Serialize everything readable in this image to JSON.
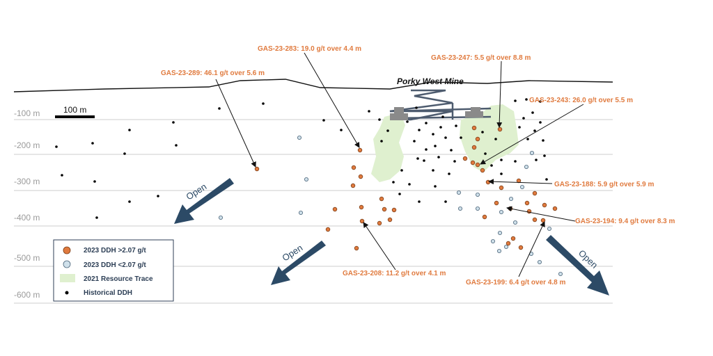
{
  "depth_labels": [
    "-100 m",
    "-200 m",
    "-300 m",
    "-400 m",
    "-500 m",
    "-600 m"
  ],
  "scale_bar": "100 m",
  "mine_title": "Porky West Mine",
  "open_labels": [
    "Open",
    "Open",
    "Open"
  ],
  "callouts": [
    {
      "text": "GAS-23-289: 46.1 g/t over 5.6 m"
    },
    {
      "text": "GAS-23-283: 19.0 g/t over 4.4 m"
    },
    {
      "text": "GAS-23-247: 5.5 g/t over 8.8 m"
    },
    {
      "text": "GAS-23-243: 26.0 g/t over 5.5 m"
    },
    {
      "text": "GAS-23-188: 5.9 g/t over 5.9 m"
    },
    {
      "text": "GAS-23-194: 9.4 g/t over 8.3 m"
    },
    {
      "text": "GAS-23-208: 11.2 g/t over 4.1 m"
    },
    {
      "text": "GAS-23-199: 6.4 g/t over 4.8 m"
    }
  ],
  "legend": [
    {
      "label": "2023 DDH >2.07 g/t",
      "color": "#e07a3e"
    },
    {
      "label": "2023 DDH <2.07 g/t",
      "color": "#cfe0ea"
    },
    {
      "label": "2021 Resource Trace",
      "color": "#dff0cf"
    },
    {
      "label": "Historical DDH",
      "color": "#000000"
    }
  ],
  "colors": {
    "callout": "#e07a3e",
    "arrow": "#2c4a66",
    "resource": "#dff0cf",
    "gridline": "#cccccc"
  }
}
